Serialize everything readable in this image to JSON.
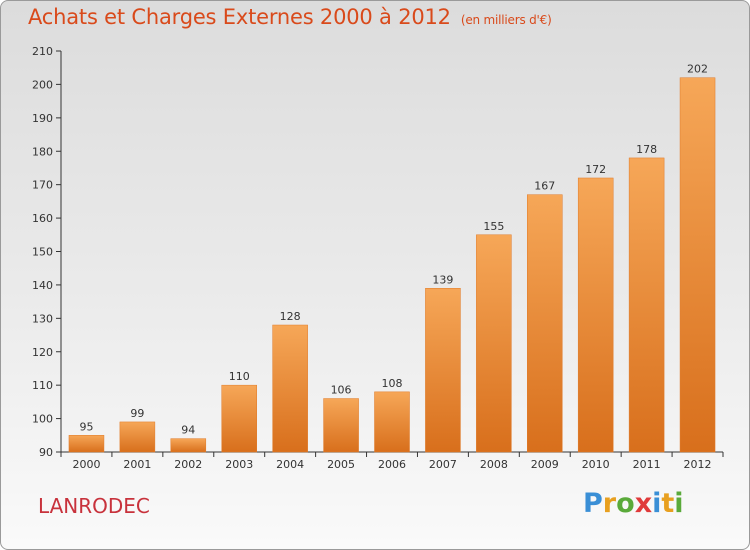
{
  "title": "Achats et Charges Externes 2000 à 2012",
  "unit": "(en milliers d'€)",
  "commune": "LANRODEC",
  "logo": {
    "letters": [
      "P",
      "r",
      "o",
      "x",
      "i",
      "t",
      "i"
    ],
    "colors": [
      "#3a8fd6",
      "#e8a020",
      "#5aaa3a",
      "#e03a3a",
      "#3a8fd6",
      "#e8a020",
      "#5aaa3a"
    ]
  },
  "colors": {
    "bar_top": "#f6a758",
    "bar_bottom": "#d86f1c",
    "title": "#d94a1b",
    "commune": "#c8323c"
  },
  "chart_data": {
    "type": "bar",
    "categories": [
      "2000",
      "2001",
      "2002",
      "2003",
      "2004",
      "2005",
      "2006",
      "2007",
      "2008",
      "2009",
      "2010",
      "2011",
      "2012"
    ],
    "values": [
      95,
      99,
      94,
      110,
      128,
      106,
      108,
      139,
      155,
      167,
      172,
      178,
      202
    ],
    "ylim": [
      90,
      210
    ],
    "yticks": [
      90,
      100,
      110,
      120,
      130,
      140,
      150,
      160,
      170,
      180,
      190,
      200,
      210
    ],
    "grid": false,
    "legend": "none"
  }
}
